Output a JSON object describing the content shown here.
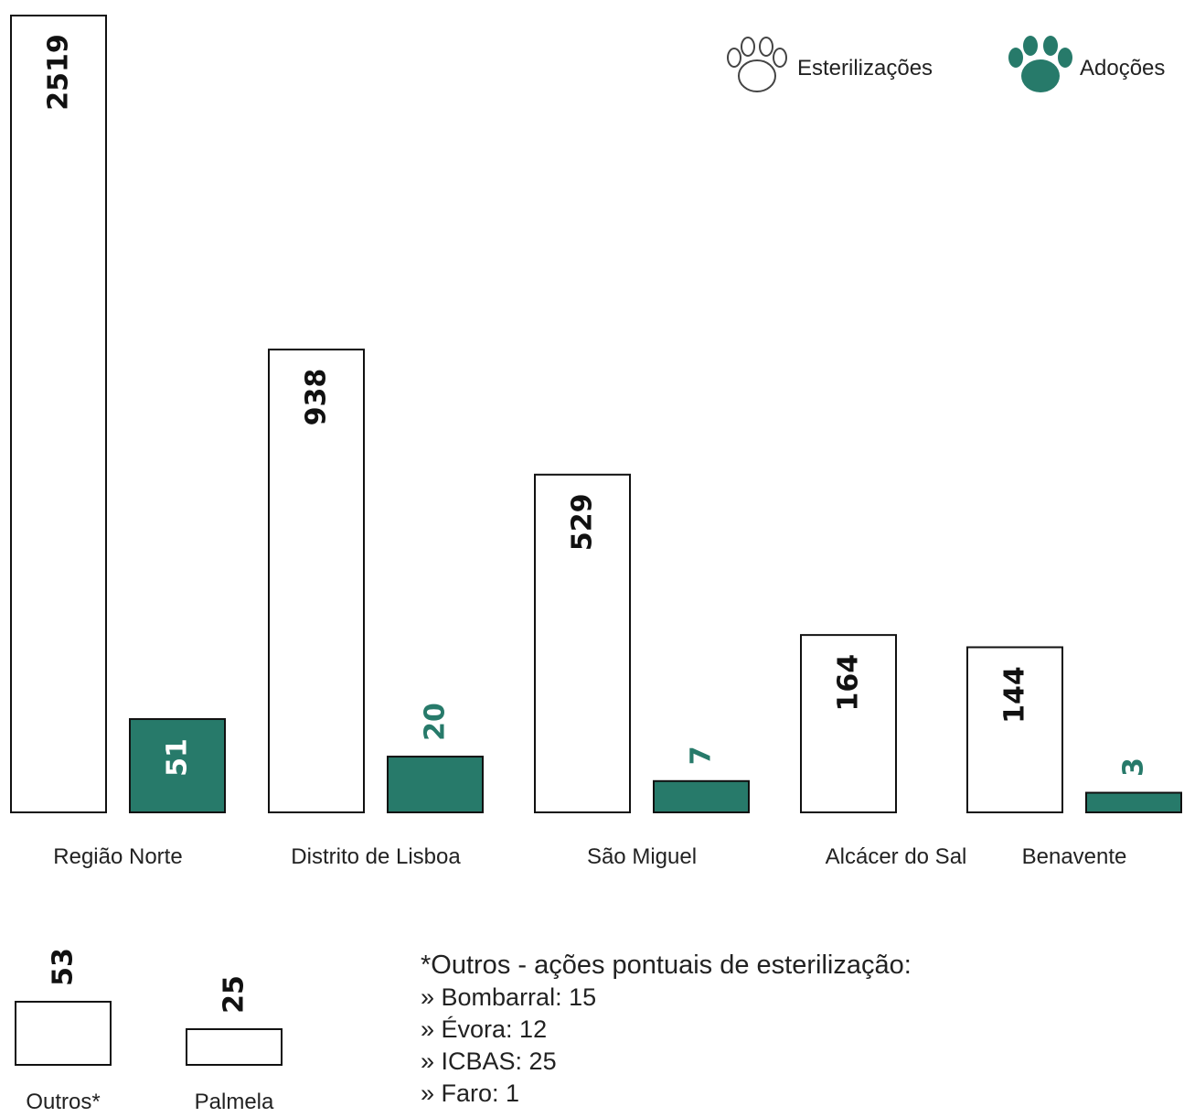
{
  "chart_data": [
    {
      "type": "bar",
      "categories": [
        "Região Norte",
        "Distrito de Lisboa",
        "São Miguel",
        "Alcácer do Sal",
        "Benavente"
      ],
      "series": [
        {
          "name": "Esterilizações",
          "values": [
            2519,
            938,
            529,
            164,
            144
          ]
        },
        {
          "name": "Adoções",
          "values": [
            51,
            20,
            7,
            null,
            3
          ]
        }
      ],
      "legend": "top-right",
      "colors": {
        "esterilizacoes_fill": "#ffffff",
        "adocoes_fill": "#277a6a",
        "stroke": "#111111",
        "adocoes_label": "#277a6a"
      }
    },
    {
      "type": "bar",
      "categories": [
        "Outros*",
        "Palmela"
      ],
      "series": [
        {
          "name": "Esterilizações",
          "values": [
            53,
            25
          ]
        }
      ]
    }
  ],
  "legend": {
    "items": [
      {
        "label": "Esterilizações",
        "icon": "paw-outline-icon"
      },
      {
        "label": "Adoções",
        "icon": "paw-filled-icon"
      }
    ]
  },
  "note": {
    "title": "*Outros - ações pontuais de esterilização:",
    "items": [
      "» Bombarral: 15",
      "» Évora: 12",
      "» ICBAS: 25",
      "» Faro: 1"
    ]
  }
}
